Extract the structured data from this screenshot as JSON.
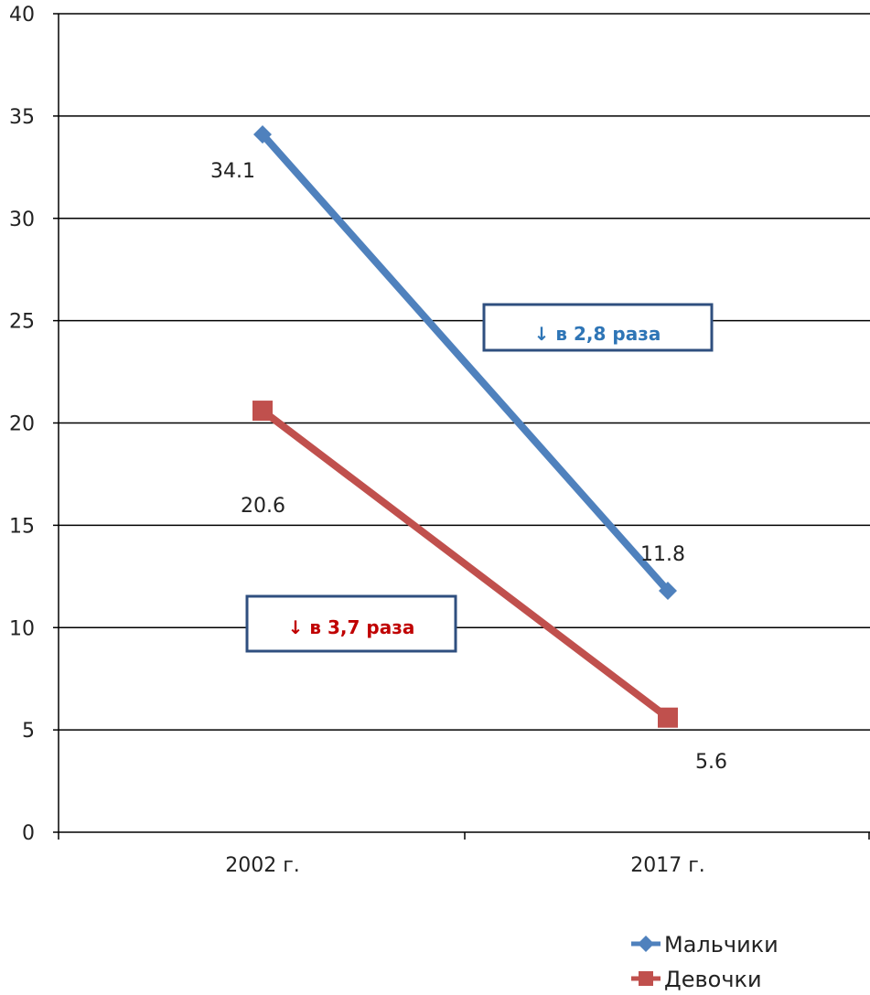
{
  "chart_data": {
    "type": "line",
    "categories": [
      "2002 г.",
      "2017 г."
    ],
    "series": [
      {
        "name": "Мальчики",
        "values": [
          34.1,
          11.8
        ],
        "color": "#4f81bd",
        "marker": "diamond"
      },
      {
        "name": "Девочки",
        "values": [
          20.6,
          5.6
        ],
        "color": "#c0504d",
        "marker": "square"
      }
    ],
    "data_labels": [
      "34.1",
      "11.8",
      "20.6",
      "5.6"
    ],
    "ylim": [
      0,
      40
    ],
    "yticks": [
      0,
      5,
      10,
      15,
      20,
      25,
      30,
      35,
      40
    ],
    "grid": true,
    "legend": "bottom-right",
    "annotations": [
      {
        "text": "↓ в 2,8 раза",
        "color": "#2e75b6",
        "border": "#2f4f7f"
      },
      {
        "text": "↓ в 3,7 раза",
        "color": "#c00000",
        "border": "#2f4f7f"
      }
    ]
  }
}
